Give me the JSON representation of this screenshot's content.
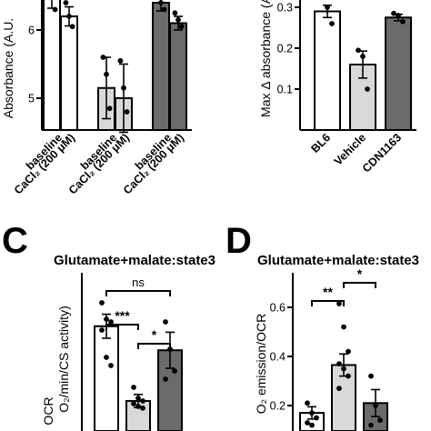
{
  "colors": {
    "white": "#ffffff",
    "light_gray": "#d9d9d9",
    "dark_gray": "#6b6b6b",
    "axis": "#000000"
  },
  "chart_data": [
    {
      "panel": "",
      "type": "bar",
      "title": "",
      "ylabel": "Absorbance (A.U.",
      "ylim": [
        4.7,
        6.9
      ],
      "yticks": [
        5,
        6
      ],
      "categories": [
        "baseline",
        "CaCl₂ (200 μM)",
        "baseline",
        "CaCl₂ (200 μM)",
        "baseline",
        "CaCl₂ (200 μM)"
      ],
      "x_labels": [
        {
          "line1": "baseline",
          "line2": "CaCl₂ (200 μM)"
        },
        {
          "line1": "baseline",
          "line2": "CaCl₂ (200 μM)"
        },
        {
          "line1": "baseline",
          "line2": "CaCl₂ (200 μM)"
        }
      ],
      "values": [
        6.5,
        6.2,
        5.15,
        5.0,
        6.4,
        6.1
      ],
      "errors": [
        0.18,
        0.14,
        0.45,
        0.5,
        0.12,
        0.1
      ],
      "bar_colors": [
        "white",
        "white",
        "light_gray",
        "light_gray",
        "dark_gray",
        "dark_gray"
      ],
      "points": [
        [
          6.85,
          6.55,
          6.3
        ],
        [
          6.4,
          6.2,
          6.05
        ],
        [
          5.6,
          5.35,
          4.85
        ],
        [
          5.55,
          5.15,
          4.8
        ],
        [
          6.55,
          6.4,
          6.3
        ],
        [
          6.25,
          6.15,
          6.05
        ]
      ]
    },
    {
      "panel": "",
      "type": "bar",
      "title": "",
      "ylabel": "Max Δ absorbance (A",
      "ylim": [
        0.0,
        0.33
      ],
      "yticks": [
        0.1,
        0.2,
        0.3
      ],
      "categories": [
        "BL6",
        "Vehicle",
        "CDN1163"
      ],
      "values": [
        0.29,
        0.16,
        0.275
      ],
      "errors": [
        0.015,
        0.033,
        0.008
      ],
      "bar_colors": [
        "white",
        "light_gray",
        "dark_gray"
      ],
      "points": [
        [
          0.325,
          0.3,
          0.26
        ],
        [
          0.195,
          0.18,
          0.1
        ],
        [
          0.285,
          0.28,
          0.265
        ]
      ]
    },
    {
      "panel": "C",
      "type": "bar",
      "title": "Glutamate+malate:state3",
      "ylabel_lines": [
        "OCR",
        "O₂/min/CS activity)"
      ],
      "ylim": [
        0.5,
        3.2
      ],
      "yticks": [],
      "categories": [
        "",
        "",
        ""
      ],
      "values": [
        2.42,
        1.05,
        1.98
      ],
      "errors": [
        0.22,
        0.12,
        0.33
      ],
      "bar_colors": [
        "white",
        "light_gray",
        "dark_gray"
      ],
      "points": [
        [
          2.85,
          2.55,
          2.5,
          2.35,
          1.85,
          1.7
        ],
        [
          1.3,
          1.1,
          1.05,
          1.0,
          0.95,
          0.92
        ],
        [
          2.5,
          2.0,
          1.6,
          1.45
        ]
      ],
      "significance": [
        {
          "from": 0,
          "to": 1,
          "label": "***"
        },
        {
          "from": 1,
          "to": 2,
          "label": "*"
        },
        {
          "from": 0,
          "to": 2,
          "label": "ns"
        }
      ]
    },
    {
      "panel": "D",
      "type": "bar",
      "title": "Glutamate+malate:state3",
      "ylabel_lines": [
        "O₂ emission/OCR"
      ],
      "ylim": [
        0.1,
        0.72
      ],
      "yticks": [
        0.2,
        0.4,
        0.6
      ],
      "categories": [
        "",
        "",
        ""
      ],
      "values": [
        0.17,
        0.365,
        0.21
      ],
      "errors": [
        0.025,
        0.045,
        0.055
      ],
      "bar_colors": [
        "white",
        "light_gray",
        "dark_gray"
      ],
      "points": [
        [
          0.21,
          0.17,
          0.15,
          0.13,
          0.12
        ],
        [
          0.615,
          0.52,
          0.42,
          0.37,
          0.35,
          0.32,
          0.27
        ],
        [
          0.32,
          0.2,
          0.14,
          0.12
        ]
      ],
      "significance": [
        {
          "from": 0,
          "to": 1,
          "label": "**"
        },
        {
          "from": 1,
          "to": 2,
          "label": "*"
        }
      ]
    }
  ]
}
